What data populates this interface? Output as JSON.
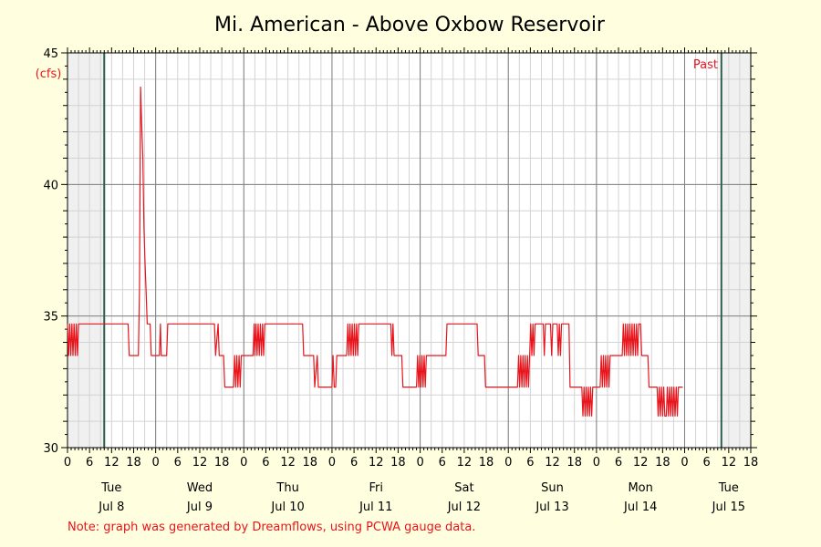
{
  "chart_data": {
    "type": "line",
    "title": "Mi. American - Above Oxbow Reservoir",
    "ylabel": "(cfs)",
    "ylim": [
      30,
      45
    ],
    "y_ticks": [
      "30",
      "35",
      "40",
      "45"
    ],
    "x_range_hours": [
      0,
      186
    ],
    "x_tick_labels": [
      "0",
      "6",
      "12",
      "18",
      "0",
      "6",
      "12",
      "18",
      "0",
      "6",
      "12",
      "18",
      "0",
      "6",
      "12",
      "18",
      "0",
      "6",
      "12",
      "18",
      "0",
      "6",
      "12",
      "18",
      "0",
      "6",
      "12",
      "18",
      "0",
      "6",
      "12",
      "18"
    ],
    "day_labels": [
      {
        "day": "Tue",
        "date": "Jul 8"
      },
      {
        "day": "Wed",
        "date": "Jul 9"
      },
      {
        "day": "Thu",
        "date": "Jul 10"
      },
      {
        "day": "Fri",
        "date": "Jul 11"
      },
      {
        "day": "Sat",
        "date": "Jul 12"
      },
      {
        "day": "Sun",
        "date": "Jul 13"
      },
      {
        "day": "Mon",
        "date": "Jul 14"
      },
      {
        "day": "Tue",
        "date": "Jul 15"
      }
    ],
    "past_label": "Past",
    "grid": true,
    "series_color": "#e8141c",
    "series": [
      {
        "name": "",
        "points": [
          [
            0,
            34.7
          ],
          [
            0.3,
            33.5
          ],
          [
            0.6,
            34.7
          ],
          [
            0.9,
            33.5
          ],
          [
            1.2,
            34.7
          ],
          [
            1.5,
            33.5
          ],
          [
            1.8,
            34.7
          ],
          [
            2.1,
            33.5
          ],
          [
            2.4,
            34.7
          ],
          [
            2.7,
            33.5
          ],
          [
            3,
            34.7
          ],
          [
            16.5,
            34.7
          ],
          [
            16.8,
            33.5
          ],
          [
            19.3,
            33.5
          ],
          [
            19.6,
            36
          ],
          [
            19.9,
            43.7
          ],
          [
            20.2,
            42.3
          ],
          [
            20.5,
            41
          ],
          [
            20.8,
            38.4
          ],
          [
            21.1,
            37
          ],
          [
            21.4,
            35.9
          ],
          [
            21.7,
            34.7
          ],
          [
            22.5,
            34.7
          ],
          [
            22.8,
            33.5
          ],
          [
            25,
            33.5
          ],
          [
            25.3,
            34.7
          ],
          [
            25.5,
            33.5
          ],
          [
            27,
            33.5
          ],
          [
            27.3,
            34.7
          ],
          [
            40,
            34.7
          ],
          [
            40.3,
            33.5
          ],
          [
            41,
            34.7
          ],
          [
            41.3,
            33.5
          ],
          [
            42.5,
            33.5
          ],
          [
            42.8,
            32.3
          ],
          [
            45.2,
            32.3
          ],
          [
            45.5,
            33.5
          ],
          [
            45.8,
            32.3
          ],
          [
            46.1,
            33.5
          ],
          [
            46.4,
            32.3
          ],
          [
            46.7,
            33.5
          ],
          [
            47,
            32.3
          ],
          [
            47.3,
            33.5
          ],
          [
            48.5,
            33.5
          ],
          [
            50.5,
            33.5
          ],
          [
            50.8,
            34.7
          ],
          [
            51,
            33.5
          ],
          [
            51.3,
            34.7
          ],
          [
            51.6,
            33.5
          ],
          [
            51.9,
            34.7
          ],
          [
            52.2,
            33.5
          ],
          [
            52.5,
            34.7
          ],
          [
            52.8,
            33.5
          ],
          [
            53.1,
            34.7
          ],
          [
            53.4,
            33.5
          ],
          [
            53.7,
            34.7
          ],
          [
            64,
            34.7
          ],
          [
            64.3,
            33.5
          ],
          [
            67,
            33.5
          ],
          [
            67.3,
            32.3
          ],
          [
            68,
            33.5
          ],
          [
            68.3,
            32.3
          ],
          [
            72,
            32.3
          ],
          [
            72.3,
            33.5
          ],
          [
            72.6,
            32.3
          ],
          [
            73,
            32.3
          ],
          [
            73.3,
            33.5
          ],
          [
            76,
            33.5
          ],
          [
            76.3,
            34.7
          ],
          [
            76.6,
            33.5
          ],
          [
            76.9,
            34.7
          ],
          [
            77.2,
            33.5
          ],
          [
            77.5,
            34.7
          ],
          [
            77.8,
            33.5
          ],
          [
            78.1,
            34.7
          ],
          [
            78.4,
            33.5
          ],
          [
            78.7,
            34.7
          ],
          [
            79,
            33.5
          ],
          [
            79.3,
            34.7
          ],
          [
            88,
            34.7
          ],
          [
            88.3,
            33.5
          ],
          [
            88.6,
            34.7
          ],
          [
            88.9,
            33.5
          ],
          [
            91,
            33.5
          ],
          [
            91.3,
            32.3
          ],
          [
            95,
            32.3
          ],
          [
            95.3,
            33.5
          ],
          [
            95.6,
            32.3
          ],
          [
            95.9,
            33.5
          ],
          [
            96.2,
            32.3
          ],
          [
            96.5,
            33.5
          ],
          [
            96.8,
            32.3
          ],
          [
            97.1,
            33.5
          ],
          [
            97.4,
            32.3
          ],
          [
            97.7,
            33.5
          ],
          [
            103,
            33.5
          ],
          [
            103.3,
            34.7
          ],
          [
            111.5,
            34.7
          ],
          [
            111.8,
            33.5
          ],
          [
            113.5,
            33.5
          ],
          [
            113.8,
            32.3
          ],
          [
            122.5,
            32.3
          ],
          [
            122.8,
            33.5
          ],
          [
            123.1,
            32.3
          ],
          [
            123.4,
            33.5
          ],
          [
            123.7,
            32.3
          ],
          [
            124,
            33.5
          ],
          [
            124.3,
            32.3
          ],
          [
            124.6,
            33.5
          ],
          [
            124.9,
            32.3
          ],
          [
            125.2,
            33.5
          ],
          [
            125.5,
            32.3
          ],
          [
            125.8,
            33.5
          ],
          [
            126.1,
            34.7
          ],
          [
            126.4,
            33.5
          ],
          [
            126.7,
            34.7
          ],
          [
            127,
            33.5
          ],
          [
            127.3,
            34.7
          ],
          [
            129.5,
            34.7
          ],
          [
            129.8,
            33.5
          ],
          [
            130.1,
            34.7
          ],
          [
            131.5,
            34.7
          ],
          [
            131.8,
            33.5
          ],
          [
            132.1,
            34.7
          ],
          [
            133.3,
            34.7
          ],
          [
            133.6,
            33.5
          ],
          [
            133.9,
            34.7
          ],
          [
            134.2,
            33.5
          ],
          [
            134.5,
            34.7
          ],
          [
            136.5,
            34.7
          ],
          [
            136.8,
            32.3
          ],
          [
            140,
            32.3
          ],
          [
            140.3,
            31.2
          ],
          [
            140.6,
            32.3
          ],
          [
            140.9,
            31.2
          ],
          [
            141.2,
            32.3
          ],
          [
            141.5,
            31.2
          ],
          [
            141.8,
            32.3
          ],
          [
            142.1,
            31.2
          ],
          [
            142.4,
            32.3
          ],
          [
            142.7,
            31.2
          ],
          [
            143,
            32.3
          ],
          [
            145,
            32.3
          ],
          [
            145.3,
            33.5
          ],
          [
            145.6,
            32.3
          ],
          [
            145.9,
            33.5
          ],
          [
            146.2,
            32.3
          ],
          [
            146.5,
            33.5
          ],
          [
            146.8,
            32.3
          ],
          [
            147.1,
            33.5
          ],
          [
            147.4,
            32.3
          ],
          [
            147.7,
            33.5
          ],
          [
            151,
            33.5
          ],
          [
            151.3,
            34.7
          ],
          [
            151.6,
            33.5
          ],
          [
            151.9,
            34.7
          ],
          [
            152.2,
            33.5
          ],
          [
            152.5,
            34.7
          ],
          [
            152.8,
            33.5
          ],
          [
            153.1,
            34.7
          ],
          [
            153.4,
            33.5
          ],
          [
            153.7,
            34.7
          ],
          [
            154,
            33.5
          ],
          [
            154.3,
            34.7
          ],
          [
            154.6,
            33.5
          ],
          [
            154.9,
            34.7
          ],
          [
            155.2,
            33.5
          ],
          [
            155.5,
            34.7
          ],
          [
            156,
            34.7
          ],
          [
            156.3,
            33.5
          ],
          [
            158,
            33.5
          ],
          [
            158.3,
            32.3
          ],
          [
            160.5,
            32.3
          ],
          [
            160.8,
            31.2
          ],
          [
            161.1,
            32.3
          ],
          [
            161.4,
            31.2
          ],
          [
            161.7,
            32.3
          ],
          [
            162,
            31.2
          ],
          [
            162.3,
            32.3
          ],
          [
            162.6,
            31.2
          ],
          [
            163,
            31.2
          ],
          [
            163.3,
            32.3
          ],
          [
            163.6,
            31.2
          ],
          [
            163.9,
            32.3
          ],
          [
            164.2,
            31.2
          ],
          [
            164.5,
            32.3
          ],
          [
            164.8,
            31.2
          ],
          [
            165.1,
            32.3
          ],
          [
            165.4,
            31.2
          ],
          [
            165.7,
            32.3
          ],
          [
            166,
            31.2
          ],
          [
            166.3,
            32.3
          ],
          [
            167.5,
            32.3
          ]
        ]
      }
    ],
    "past_marker_hour": 178,
    "now_marker_hour": 10,
    "note": "Note: graph was generated by Dreamflows, using PCWA gauge data."
  }
}
